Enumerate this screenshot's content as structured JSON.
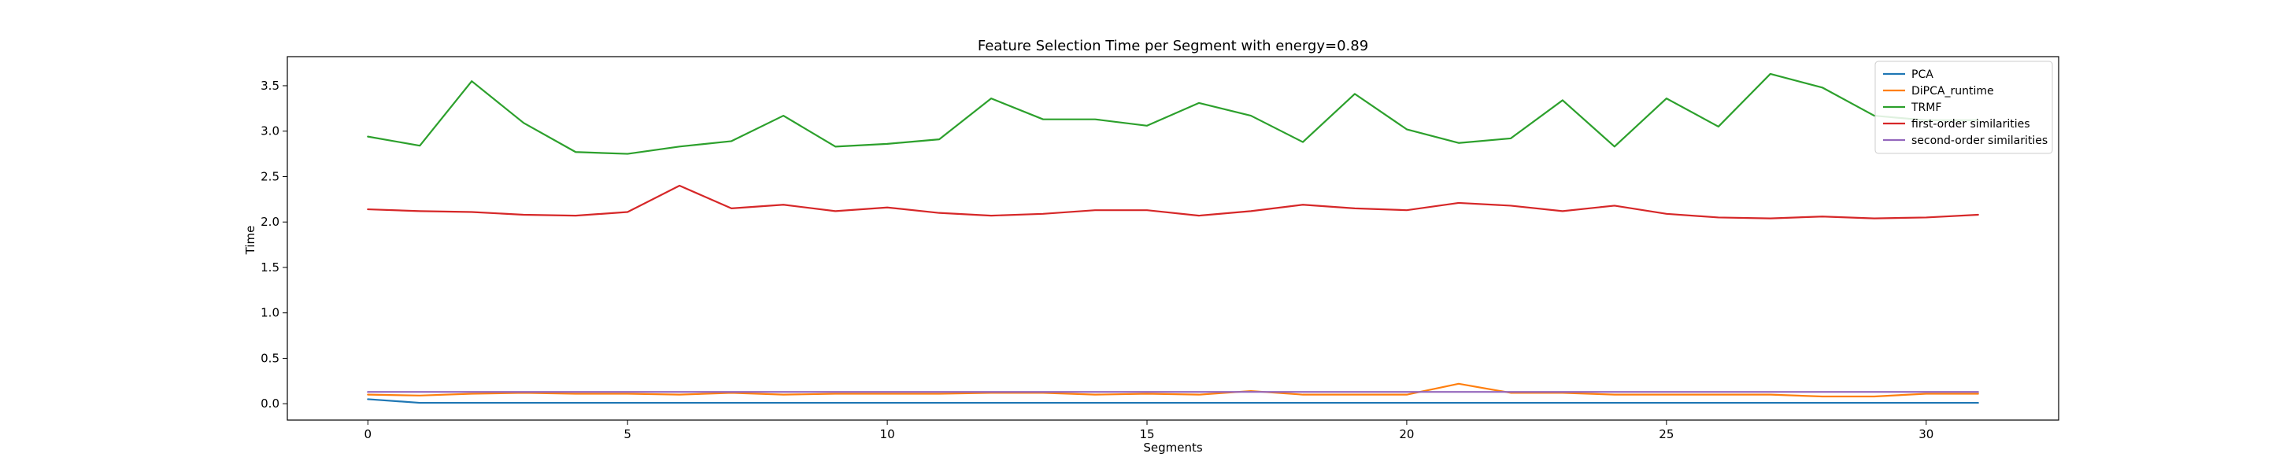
{
  "chart_data": {
    "type": "line",
    "title": "Feature Selection Time per Segment with energy=0.89",
    "xlabel": "Segments",
    "ylabel": "Time",
    "xlim": [
      -1.55,
      32.55
    ],
    "ylim": [
      -0.18,
      3.82
    ],
    "xticks": [
      0,
      5,
      10,
      15,
      20,
      25,
      30
    ],
    "yticks": [
      0.0,
      0.5,
      1.0,
      1.5,
      2.0,
      2.5,
      3.0,
      3.5
    ],
    "grid": false,
    "legend_position": "top-right",
    "x": [
      0,
      1,
      2,
      3,
      4,
      5,
      6,
      7,
      8,
      9,
      10,
      11,
      12,
      13,
      14,
      15,
      16,
      17,
      18,
      19,
      20,
      21,
      22,
      23,
      24,
      25,
      26,
      27,
      28,
      29,
      30,
      31
    ],
    "series": [
      {
        "name": "PCA",
        "color": "#1f77b4",
        "values": [
          0.05,
          0.01,
          0.01,
          0.01,
          0.01,
          0.01,
          0.01,
          0.01,
          0.01,
          0.01,
          0.01,
          0.01,
          0.01,
          0.01,
          0.01,
          0.01,
          0.01,
          0.01,
          0.01,
          0.01,
          0.01,
          0.01,
          0.01,
          0.01,
          0.01,
          0.01,
          0.01,
          0.01,
          0.01,
          0.01,
          0.01,
          0.01
        ]
      },
      {
        "name": "DiPCA_runtime",
        "color": "#ff7f0e",
        "values": [
          0.1,
          0.09,
          0.11,
          0.12,
          0.11,
          0.11,
          0.1,
          0.12,
          0.1,
          0.11,
          0.11,
          0.11,
          0.12,
          0.12,
          0.1,
          0.11,
          0.1,
          0.14,
          0.1,
          0.1,
          0.1,
          0.22,
          0.12,
          0.12,
          0.1,
          0.1,
          0.1,
          0.1,
          0.08,
          0.08,
          0.11,
          0.11
        ]
      },
      {
        "name": "TRMF",
        "color": "#2ca02c",
        "values": [
          2.94,
          2.84,
          3.55,
          3.09,
          2.77,
          2.75,
          2.83,
          2.89,
          3.17,
          2.83,
          2.86,
          2.91,
          3.36,
          3.13,
          3.13,
          3.06,
          3.31,
          3.17,
          2.88,
          3.41,
          3.02,
          2.87,
          2.92,
          3.34,
          2.83,
          3.36,
          3.05,
          3.63,
          3.48,
          3.17,
          3.12,
          3.12
        ]
      },
      {
        "name": "first-order similarities",
        "color": "#d62728",
        "values": [
          2.14,
          2.12,
          2.11,
          2.08,
          2.07,
          2.11,
          2.4,
          2.15,
          2.19,
          2.12,
          2.16,
          2.1,
          2.07,
          2.09,
          2.13,
          2.13,
          2.07,
          2.12,
          2.19,
          2.15,
          2.13,
          2.21,
          2.18,
          2.12,
          2.18,
          2.09,
          2.05,
          2.04,
          2.06,
          2.04,
          2.05,
          2.08
        ]
      },
      {
        "name": "second-order similarities",
        "color": "#9467bd",
        "values": [
          0.13,
          0.13,
          0.13,
          0.13,
          0.13,
          0.13,
          0.13,
          0.13,
          0.13,
          0.13,
          0.13,
          0.13,
          0.13,
          0.13,
          0.13,
          0.13,
          0.13,
          0.13,
          0.13,
          0.13,
          0.13,
          0.13,
          0.13,
          0.13,
          0.13,
          0.13,
          0.13,
          0.13,
          0.13,
          0.13,
          0.13,
          0.13
        ]
      }
    ]
  }
}
